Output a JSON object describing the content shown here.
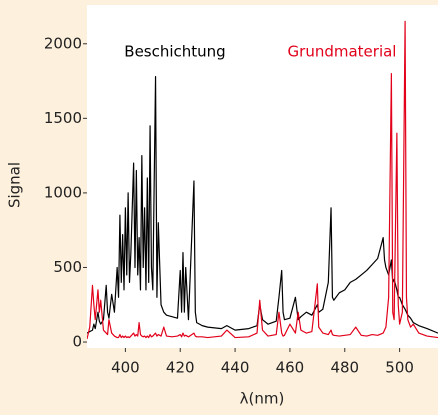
{
  "chart_data": {
    "type": "line",
    "xlabel": "λ(nm)",
    "ylabel": "Signal",
    "x": [
      386,
      387,
      388,
      388.5,
      389,
      390,
      390.5,
      391,
      392,
      393,
      393.5,
      394,
      395,
      396,
      397,
      397.5,
      398,
      398.5,
      399,
      399.5,
      400,
      400.5,
      401,
      401.5,
      402,
      403,
      403.5,
      404,
      404.5,
      405,
      405.5,
      406,
      406.5,
      407,
      407.5,
      408,
      408.5,
      409,
      409.5,
      410,
      411,
      411.5,
      412,
      413,
      414,
      415,
      417,
      419,
      420,
      420.5,
      421,
      421.5,
      422,
      423,
      425,
      425.5,
      426,
      428,
      430,
      435,
      437,
      440,
      445,
      448,
      449,
      450,
      452,
      455,
      456,
      457,
      457.5,
      458,
      460,
      462,
      463,
      464,
      466,
      468,
      470,
      470.5,
      472,
      474,
      475,
      475.5,
      476,
      478,
      480,
      482,
      484,
      486,
      488,
      490,
      492,
      494,
      494.5,
      495,
      496,
      497,
      497.5,
      498,
      499,
      499.5,
      500,
      501,
      502,
      502.5,
      503,
      504,
      505,
      507,
      510,
      514
    ],
    "series": [
      {
        "name": "Beschichtung",
        "color": "#000000",
        "values": [
          60,
          70,
          80,
          120,
          90,
          200,
          140,
          120,
          150,
          380,
          200,
          160,
          320,
          200,
          500,
          300,
          850,
          400,
          720,
          350,
          900,
          450,
          1000,
          400,
          600,
          1200,
          500,
          1150,
          450,
          700,
          350,
          1250,
          500,
          900,
          350,
          1100,
          400,
          1450,
          500,
          350,
          1780,
          300,
          800,
          250,
          200,
          180,
          170,
          160,
          480,
          200,
          600,
          200,
          500,
          150,
          1080,
          200,
          130,
          110,
          100,
          90,
          110,
          80,
          90,
          110,
          250,
          150,
          120,
          140,
          300,
          480,
          200,
          150,
          160,
          300,
          150,
          170,
          200,
          180,
          250,
          200,
          220,
          400,
          900,
          300,
          280,
          330,
          350,
          400,
          420,
          450,
          480,
          520,
          560,
          700,
          550,
          500,
          450,
          550,
          400,
          420,
          350,
          300,
          300,
          250,
          220,
          200,
          180,
          160,
          130,
          110,
          90,
          60
        ]
      },
      {
        "name": "Grundmaterial",
        "color": "#e2001a",
        "values": [
          20,
          100,
          380,
          250,
          150,
          350,
          200,
          280,
          80,
          60,
          50,
          150,
          60,
          40,
          30,
          30,
          50,
          30,
          40,
          30,
          40,
          30,
          35,
          30,
          40,
          60,
          40,
          50,
          40,
          130,
          50,
          40,
          35,
          40,
          30,
          40,
          30,
          50,
          35,
          40,
          60,
          40,
          50,
          40,
          100,
          40,
          35,
          40,
          50,
          35,
          60,
          40,
          45,
          35,
          60,
          40,
          35,
          35,
          30,
          40,
          80,
          30,
          35,
          60,
          280,
          80,
          40,
          50,
          200,
          60,
          40,
          45,
          120,
          60,
          200,
          80,
          60,
          70,
          390,
          100,
          60,
          50,
          80,
          50,
          45,
          40,
          45,
          50,
          100,
          45,
          40,
          50,
          45,
          60,
          80,
          100,
          300,
          1800,
          200,
          150,
          1400,
          250,
          120,
          200,
          2150,
          300,
          150,
          100,
          120,
          60,
          40,
          30
        ]
      }
    ],
    "xlim": [
      386,
      514
    ],
    "ylim": [
      -40,
      2260
    ],
    "xticks": [
      400,
      420,
      440,
      460,
      480,
      500
    ],
    "yticks": [
      0,
      500,
      1000,
      1500,
      2000
    ]
  }
}
